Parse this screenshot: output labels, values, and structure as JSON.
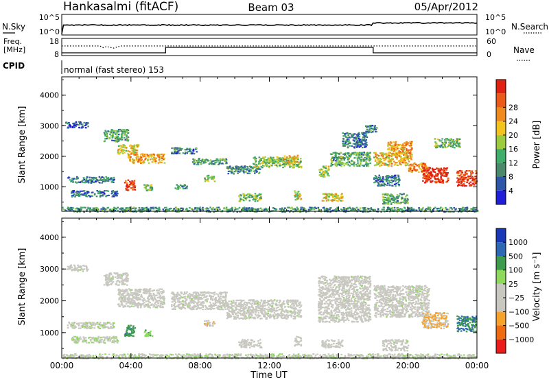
{
  "header": {
    "station": "Hankasalmi (fitACF)",
    "beam": "Beam 03",
    "date": "05/Apr/2012"
  },
  "top_panels": {
    "nsky_label": "N.Sky",
    "nsky_ticks": [
      "10^5",
      "10^0"
    ],
    "nsearch_label": "N.Search",
    "nsearch_ticks": [
      "10^5",
      "10^0"
    ],
    "freq_label": "Freq.",
    "freq_unit": "[MHz]",
    "freq_ticks": [
      "18",
      "8"
    ],
    "nave_label": "Nave",
    "nave_ticks": [
      "60",
      "0"
    ],
    "cpid_label": "CPID",
    "cpid_text": "normal (fast stereo) 153"
  },
  "colors": {
    "power": [
      "#1f1fd8",
      "#2d55a8",
      "#4a8a6a",
      "#3fae6a",
      "#9ccc3e",
      "#f2c21d",
      "#f08a1c",
      "#ec5a1a",
      "#e02010"
    ],
    "velocity": [
      "#ec1c1c",
      "#f06a10",
      "#f7a22a",
      "#c8c8c0",
      "#c8c8c0",
      "#8ed85c",
      "#3c9c4c",
      "#2c68b4",
      "#1838b8"
    ]
  },
  "chart_data": [
    {
      "type": "heatmap",
      "name": "power",
      "xlabel": "",
      "ylabel": "Slant Range [km]",
      "xlim": [
        0,
        24
      ],
      "ylim": [
        200,
        4600
      ],
      "yticks": [
        "1000",
        "2000",
        "3000",
        "4000"
      ],
      "ytick_values": [
        1000,
        2000,
        3000,
        4000
      ],
      "colorbar": {
        "label": "Power [dB]",
        "ticks": [
          "4",
          "8",
          "12",
          "16",
          "20",
          "24",
          "28"
        ],
        "range": [
          0,
          32
        ]
      },
      "regions": [
        {
          "t0": 0.2,
          "t1": 1.5,
          "r0": 2950,
          "r1": 3150,
          "value": 6
        },
        {
          "t0": 0.3,
          "t1": 3.0,
          "r0": 1150,
          "r1": 1350,
          "value": 8
        },
        {
          "t0": 0.5,
          "t1": 3.2,
          "r0": 700,
          "r1": 900,
          "value": 7
        },
        {
          "t0": 2.4,
          "t1": 3.8,
          "r0": 2500,
          "r1": 2900,
          "value": 12
        },
        {
          "t0": 3.2,
          "t1": 4.4,
          "r0": 2100,
          "r1": 2400,
          "value": 18
        },
        {
          "t0": 3.8,
          "t1": 5.9,
          "r0": 1800,
          "r1": 2100,
          "value": 22
        },
        {
          "t0": 3.6,
          "t1": 4.2,
          "r0": 900,
          "r1": 1250,
          "value": 28
        },
        {
          "t0": 4.7,
          "t1": 5.2,
          "r0": 900,
          "r1": 1100,
          "value": 14
        },
        {
          "t0": 6.3,
          "t1": 7.8,
          "r0": 2100,
          "r1": 2300,
          "value": 9
        },
        {
          "t0": 6.5,
          "t1": 7.2,
          "r0": 950,
          "r1": 1100,
          "value": 10
        },
        {
          "t0": 7.5,
          "t1": 9.5,
          "r0": 1750,
          "r1": 1950,
          "value": 11
        },
        {
          "t0": 8.2,
          "t1": 8.8,
          "r0": 1200,
          "r1": 1400,
          "value": 16
        },
        {
          "t0": 9.5,
          "t1": 11.5,
          "r0": 1450,
          "r1": 1700,
          "value": 10
        },
        {
          "t0": 11.0,
          "t1": 13.8,
          "r0": 1650,
          "r1": 2000,
          "value": 14
        },
        {
          "t0": 12.8,
          "t1": 13.6,
          "r0": 1800,
          "r1": 2050,
          "value": 20
        },
        {
          "t0": 10.2,
          "t1": 11.5,
          "r0": 550,
          "r1": 800,
          "value": 14
        },
        {
          "t0": 13.4,
          "t1": 13.8,
          "r0": 600,
          "r1": 900,
          "value": 18
        },
        {
          "t0": 14.8,
          "t1": 15.4,
          "r0": 1350,
          "r1": 1700,
          "value": 16
        },
        {
          "t0": 15.5,
          "t1": 17.8,
          "r0": 1700,
          "r1": 2150,
          "value": 12
        },
        {
          "t0": 16.2,
          "t1": 17.6,
          "r0": 2300,
          "r1": 2800,
          "value": 8
        },
        {
          "t0": 15.0,
          "t1": 16.2,
          "r0": 550,
          "r1": 800,
          "value": 18
        },
        {
          "t0": 17.5,
          "t1": 18.2,
          "r0": 2800,
          "r1": 3050,
          "value": 9
        },
        {
          "t0": 18.0,
          "t1": 20.2,
          "r0": 1700,
          "r1": 2150,
          "value": 20
        },
        {
          "t0": 18.8,
          "t1": 20.2,
          "r0": 2100,
          "r1": 2500,
          "value": 22
        },
        {
          "t0": 18.0,
          "t1": 19.5,
          "r0": 1050,
          "r1": 1400,
          "value": 8
        },
        {
          "t0": 18.5,
          "t1": 20.0,
          "r0": 450,
          "r1": 800,
          "value": 12
        },
        {
          "t0": 20.0,
          "t1": 21.2,
          "r0": 1500,
          "r1": 1800,
          "value": 24
        },
        {
          "t0": 20.8,
          "t1": 22.3,
          "r0": 1150,
          "r1": 1650,
          "value": 30
        },
        {
          "t0": 22.8,
          "t1": 23.95,
          "r0": 1050,
          "r1": 1550,
          "value": 29
        },
        {
          "t0": 21.5,
          "t1": 23.0,
          "r0": 2300,
          "r1": 2600,
          "value": 13
        },
        {
          "t0": 0.0,
          "t1": 24.0,
          "r0": 200,
          "r1": 350,
          "value": 10
        }
      ]
    },
    {
      "type": "heatmap",
      "name": "velocity",
      "xlabel": "Time UT",
      "ylabel": "Slant Range [km]",
      "xlim": [
        0,
        24
      ],
      "ylim": [
        200,
        4600
      ],
      "xticks": [
        "00:00",
        "04:00",
        "08:00",
        "12:00",
        "16:00",
        "20:00",
        "00:00"
      ],
      "xtick_values": [
        0,
        4,
        8,
        12,
        16,
        20,
        24
      ],
      "yticks": [
        "1000",
        "2000",
        "3000",
        "4000"
      ],
      "ytick_values": [
        1000,
        2000,
        3000,
        4000
      ],
      "colorbar": {
        "label": "Velocity [m s⁻¹]",
        "ticks": [
          "1000",
          "500",
          "100",
          "25",
          "−25",
          "−100",
          "−500",
          "−1000"
        ],
        "range": [
          -1250,
          1250
        ]
      },
      "regions": [
        {
          "t0": 0.2,
          "t1": 1.5,
          "r0": 2950,
          "r1": 3150,
          "value": 0
        },
        {
          "t0": 0.3,
          "t1": 3.0,
          "r0": 1150,
          "r1": 1350,
          "value": 60
        },
        {
          "t0": 0.5,
          "t1": 3.2,
          "r0": 700,
          "r1": 900,
          "value": 120
        },
        {
          "t0": 2.4,
          "t1": 3.8,
          "r0": 2500,
          "r1": 2900,
          "value": 0
        },
        {
          "t0": 3.2,
          "t1": 5.9,
          "r0": 1800,
          "r1": 2400,
          "value": 0
        },
        {
          "t0": 3.6,
          "t1": 4.2,
          "r0": 900,
          "r1": 1250,
          "value": 600
        },
        {
          "t0": 4.7,
          "t1": 5.2,
          "r0": 900,
          "r1": 1100,
          "value": 350
        },
        {
          "t0": 6.3,
          "t1": 9.5,
          "r0": 1750,
          "r1": 2300,
          "value": 0
        },
        {
          "t0": 8.2,
          "t1": 8.8,
          "r0": 1200,
          "r1": 1400,
          "value": -350
        },
        {
          "t0": 9.5,
          "t1": 13.8,
          "r0": 1450,
          "r1": 2050,
          "value": 0
        },
        {
          "t0": 10.2,
          "t1": 11.5,
          "r0": 550,
          "r1": 800,
          "value": -120
        },
        {
          "t0": 13.4,
          "t1": 13.8,
          "r0": 600,
          "r1": 900,
          "value": -200
        },
        {
          "t0": 14.8,
          "t1": 17.8,
          "r0": 1350,
          "r1": 2800,
          "value": 0
        },
        {
          "t0": 15.0,
          "t1": 16.2,
          "r0": 550,
          "r1": 800,
          "value": -150
        },
        {
          "t0": 18.0,
          "t1": 21.2,
          "r0": 1500,
          "r1": 2500,
          "value": 0
        },
        {
          "t0": 18.5,
          "t1": 20.0,
          "r0": 450,
          "r1": 800,
          "value": 0
        },
        {
          "t0": 20.8,
          "t1": 22.3,
          "r0": 1150,
          "r1": 1650,
          "value": -400
        },
        {
          "t0": 22.8,
          "t1": 23.95,
          "r0": 1050,
          "r1": 1550,
          "value": 700
        },
        {
          "t0": 0.0,
          "t1": 24.0,
          "r0": 200,
          "r1": 350,
          "value": 60
        }
      ]
    }
  ]
}
